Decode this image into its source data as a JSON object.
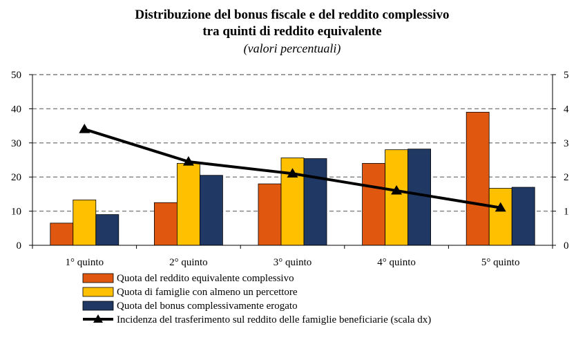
{
  "chart_data": {
    "type": "bar",
    "title": "Distribuzione del bonus fiscale e del reddito complessivo",
    "title_line2": "tra quinti di reddito equivalente",
    "subtitle": "(valori percentuali)",
    "categories": [
      "1° quinto",
      "2° quinto",
      "3° quinto",
      "4° quinto",
      "5° quinto"
    ],
    "series": [
      {
        "name": "Quota del reddito equivalente complessivo",
        "type": "bar",
        "axis": "left",
        "color": "#E0570F",
        "values": [
          6.5,
          12.5,
          18,
          24,
          39
        ]
      },
      {
        "name": "Quota di famiglie con almeno un percettore",
        "type": "bar",
        "axis": "left",
        "color": "#FFC000",
        "values": [
          13.3,
          24,
          25.6,
          28,
          16.7
        ]
      },
      {
        "name": "Quota del bonus complessivamente erogato",
        "type": "bar",
        "axis": "left",
        "color": "#1F3864",
        "values": [
          9,
          20.5,
          25.4,
          28.2,
          17
        ]
      },
      {
        "name": "Incidenza del trasferimento sul reddito delle famiglie beneficiarie (scala dx)",
        "type": "line",
        "axis": "right",
        "color": "#000000",
        "values": [
          3.4,
          2.45,
          2.1,
          1.6,
          1.1
        ]
      }
    ],
    "y_left": {
      "ylim": [
        0,
        50
      ],
      "ticks": [
        "0",
        "10",
        "20",
        "30",
        "40",
        "50"
      ]
    },
    "y_right": {
      "ylim": [
        0,
        5
      ],
      "ticks": [
        "0",
        "1",
        "2",
        "3",
        "4",
        "5"
      ]
    },
    "grid": true,
    "legend_position": "bottom"
  }
}
